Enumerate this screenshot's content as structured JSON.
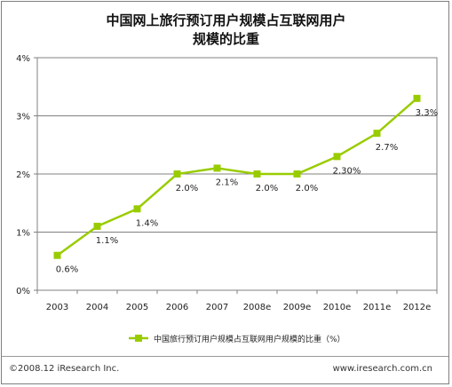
{
  "chart_data": {
    "type": "line",
    "title": "中国网上旅行预订用户规模占互联网用户",
    "title_line2": "规模的比重",
    "categories": [
      "2003",
      "2004",
      "2005",
      "2006",
      "2007",
      "2008e",
      "2009e",
      "2010e",
      "2011e",
      "2012e"
    ],
    "series": [
      {
        "name": "中国旅行预订用户规模占互联网用户规模的比重（%）",
        "values": [
          0.6,
          1.1,
          1.4,
          2.0,
          2.1,
          2.0,
          2.0,
          2.3,
          2.7,
          3.3
        ],
        "labels": [
          "0.6%",
          "1.1%",
          "1.4%",
          "2.0%",
          "2.1%",
          "2.0%",
          "2.0%",
          "2.30%",
          "2.7%",
          "3.3%"
        ],
        "color": "#99cc00"
      }
    ],
    "y_ticks": [
      "0%",
      "1%",
      "2%",
      "3%",
      "4%"
    ],
    "ylim": [
      0,
      4
    ],
    "grid": true,
    "legend_position": "bottom"
  },
  "footer": {
    "copyright": "©2008.12 iResearch Inc.",
    "website": "www.iresearch.com.cn"
  }
}
